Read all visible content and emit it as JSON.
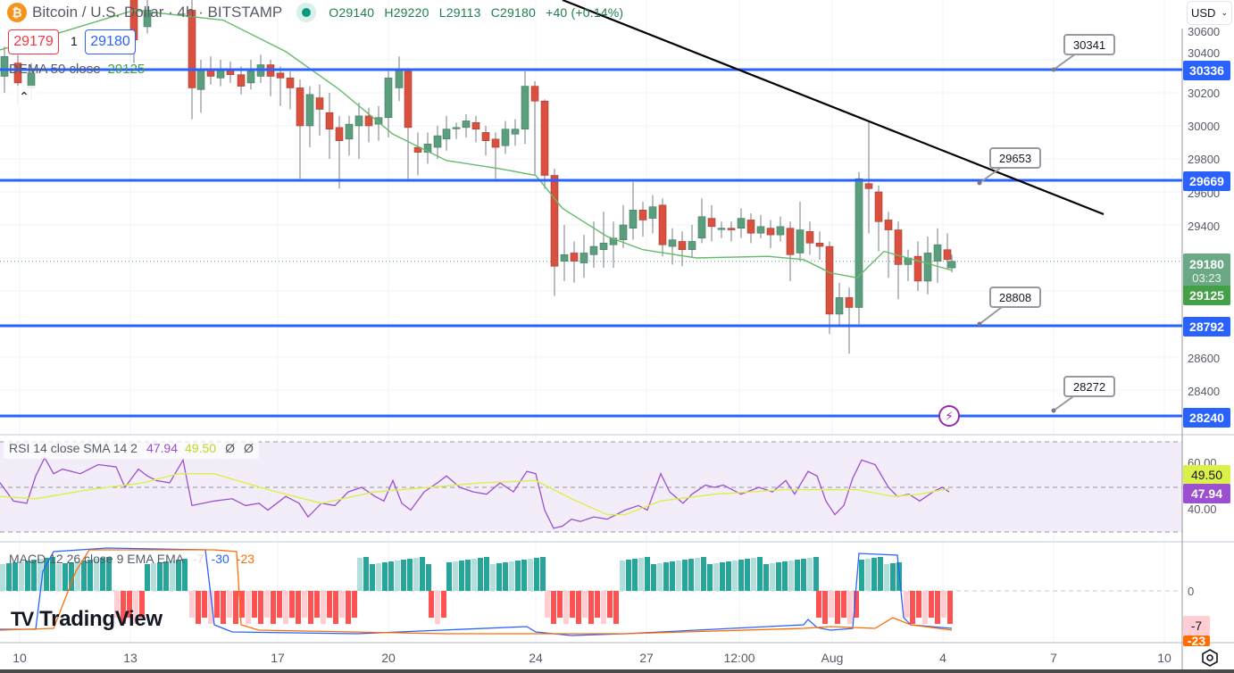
{
  "header": {
    "symbol_icon": "bitcoin-icon",
    "symbol_glyph": "₿",
    "title": "Bitcoin / U.S. Dollar · 4h · BITSTAMP",
    "market_status": "open",
    "ohlc": {
      "open": "O29140",
      "high": "H29220",
      "low": "L29113",
      "close": "C29180",
      "change": "+40 (+0.14%)"
    },
    "sell_price": "29179",
    "spread": "1",
    "buy_price": "29180",
    "collapse_glyph": "⌃"
  },
  "indicators": {
    "dema": {
      "label": "DEMA 50 close",
      "value": "29125"
    },
    "rsi": {
      "label": "RSI 14 close SMA 14 2",
      "rsi_value": "47.94",
      "sma_value": "49.50",
      "extra1": "Ø",
      "extra2": "Ø"
    },
    "macd": {
      "label": "MACD 12 26 close 9 EMA EMA",
      "histogram": "-7",
      "macd": "-30",
      "signal": "-23"
    }
  },
  "price_axis": {
    "currency_button": "USD",
    "ticks": [
      "30400",
      "30200",
      "30000",
      "29800",
      "29600",
      "29400",
      "28600",
      "28400"
    ],
    "tags": {
      "level1": "30336",
      "level2": "29669",
      "last_price": "29180",
      "countdown": "03:23",
      "dema": "29125",
      "level3": "28792",
      "level4": "28240"
    },
    "rsi_ticks": [
      "60.00",
      "40.00"
    ],
    "rsi_tags": {
      "sma": "49.50",
      "rsi": "47.94"
    },
    "macd_ticks": [
      "0"
    ],
    "macd_tags": {
      "hist": "-7",
      "signal": "-23"
    }
  },
  "drawings": {
    "callouts": [
      "30341",
      "29653",
      "28808",
      "28272"
    ],
    "horizontal_levels": [
      "30336",
      "29669",
      "28792",
      "28240"
    ],
    "trendline": "descending resistance"
  },
  "time_axis": {
    "labels": [
      "10",
      "13",
      "17",
      "20",
      "24",
      "27",
      "12:00",
      "Aug",
      "4",
      "7",
      "10"
    ]
  },
  "branding": {
    "logo_mark": "TV",
    "logo_text": "TradingView"
  },
  "colors": {
    "up": "#5b9e7d",
    "down": "#d9503f",
    "level_line": "#2962ff",
    "dema": "#66bb6a",
    "rsi": "#9c4fd0",
    "rsi_sma": "#dcf04a",
    "macd": "#2962ff",
    "signal": "#ff6d00",
    "hist_up_strong": "#26a69a",
    "hist_up_weak": "#b2dfdb",
    "hist_down_strong": "#ff5252",
    "hist_down_weak": "#ffcdd2"
  }
}
